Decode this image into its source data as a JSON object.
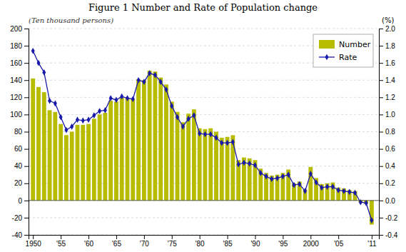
{
  "chart_data": {
    "type": "bar",
    "title": "Figure 1 Number and Rate of Population change",
    "ylabel": "(Ten thousand persons)",
    "y2label": "(%)",
    "x": [
      1950,
      1951,
      1952,
      1953,
      1954,
      1955,
      1956,
      1957,
      1958,
      1959,
      1960,
      1961,
      1962,
      1963,
      1964,
      1965,
      1966,
      1967,
      1968,
      1969,
      1970,
      1971,
      1972,
      1973,
      1974,
      1975,
      1976,
      1977,
      1978,
      1979,
      1980,
      1981,
      1982,
      1983,
      1984,
      1985,
      1986,
      1987,
      1988,
      1989,
      1990,
      1991,
      1992,
      1993,
      1994,
      1995,
      1996,
      1997,
      1998,
      1999,
      2000,
      2001,
      2002,
      2003,
      2004,
      2005,
      2006,
      2007,
      2008,
      2009,
      2010,
      2011
    ],
    "xlim": [
      1949.2,
      2012.3
    ],
    "xticks": [
      1950,
      {
        "value": 1955,
        "label": "'55"
      },
      {
        "value": 1960,
        "label": "'60"
      },
      {
        "value": 1965,
        "label": "'65"
      },
      {
        "value": 1970,
        "label": "'70"
      },
      {
        "value": 1975,
        "label": "'75"
      },
      {
        "value": 1980,
        "label": "'80"
      },
      {
        "value": 1985,
        "label": "'85"
      },
      {
        "value": 1990,
        "label": "'90"
      },
      {
        "value": 1995,
        "label": "'95"
      },
      2000,
      {
        "value": 2005,
        "label": "'05"
      },
      {
        "value": 2011,
        "label": "'11"
      }
    ],
    "ylim": [
      -40,
      200
    ],
    "yticks": [
      -40,
      -20,
      0,
      20,
      40,
      60,
      80,
      100,
      120,
      140,
      160,
      180,
      200
    ],
    "y2lim": [
      -0.4,
      2.0
    ],
    "y2ticks": [
      -0.4,
      -0.2,
      {
        "value": 0.0,
        "label": "0.0"
      },
      0.2,
      0.4,
      0.6,
      0.8,
      {
        "value": 1.0,
        "label": "1.0"
      },
      1.2,
      1.4,
      1.6,
      1.8,
      {
        "value": 2.0,
        "label": "2.0"
      }
    ],
    "grid": true,
    "legend": "upper right",
    "series": [
      {
        "name": "Number",
        "type": "bar",
        "color": "#b8bc00",
        "values": [
          142,
          132,
          126,
          105,
          103,
          89,
          76,
          80,
          88,
          88,
          89,
          95,
          100,
          102,
          116,
          115,
          120,
          119,
          118,
          141,
          140,
          151,
          150,
          143,
          135,
          115,
          103,
          91,
          101,
          106,
          84,
          83,
          84,
          80,
          73,
          74,
          76,
          47,
          50,
          49,
          47,
          37,
          32,
          29,
          30,
          32,
          36,
          20,
          22,
          13,
          39,
          26,
          19,
          20,
          21,
          15,
          14,
          12,
          11,
          -2,
          -4,
          -28
        ]
      },
      {
        "name": "Rate",
        "type": "line",
        "axis": "y2",
        "color": "#1a1aaa",
        "marker": "diamond",
        "values": [
          1.74,
          1.6,
          1.49,
          1.16,
          1.13,
          0.97,
          0.82,
          0.86,
          0.94,
          0.93,
          0.94,
          0.99,
          1.04,
          1.05,
          1.19,
          1.17,
          1.21,
          1.19,
          1.18,
          1.4,
          1.38,
          1.48,
          1.46,
          1.38,
          1.29,
          1.1,
          0.97,
          0.86,
          0.95,
          0.99,
          0.78,
          0.77,
          0.77,
          0.73,
          0.67,
          0.67,
          0.68,
          0.42,
          0.44,
          0.43,
          0.41,
          0.32,
          0.28,
          0.25,
          0.26,
          0.28,
          0.3,
          0.18,
          0.19,
          0.11,
          0.31,
          0.21,
          0.15,
          0.16,
          0.16,
          0.12,
          0.11,
          0.1,
          0.09,
          -0.02,
          -0.03,
          -0.23
        ]
      }
    ]
  }
}
